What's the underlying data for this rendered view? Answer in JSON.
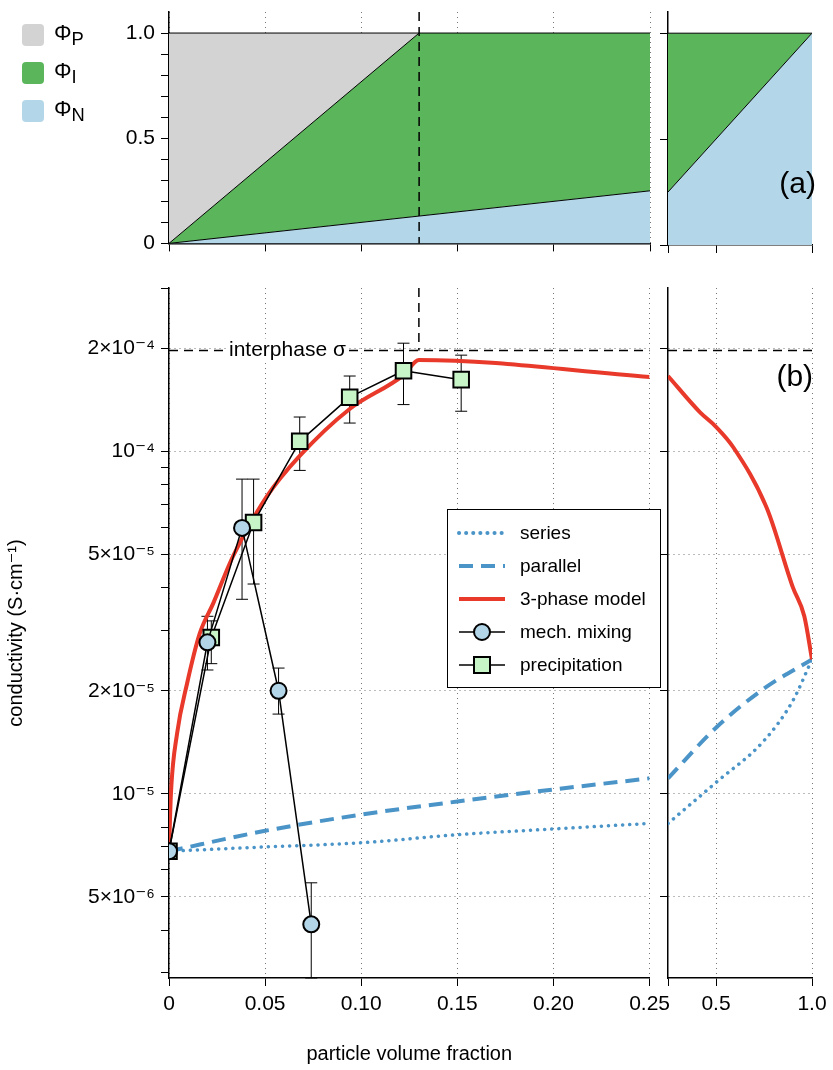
{
  "chart_data": [
    {
      "type": "area",
      "stacked": true,
      "x": [
        0,
        0.13,
        0.25
      ],
      "xlim": [
        0,
        0.25
      ],
      "xticks": [
        0,
        0.05,
        0.1,
        0.15,
        0.2,
        0.25
      ],
      "ylim": [
        0,
        1.1
      ],
      "yticks": [
        0,
        {
          "value": 0.1,
          "label": null
        },
        {
          "value": 0.2,
          "label": null
        },
        {
          "value": 0.3,
          "label": null
        },
        {
          "value": 0.4,
          "label": null
        },
        0.5,
        {
          "value": 0.6,
          "label": null
        },
        {
          "value": 0.7,
          "label": null
        },
        {
          "value": 0.8,
          "label": null
        },
        {
          "value": 0.9,
          "label": null
        },
        {
          "value": 1,
          "label": "1.0"
        }
      ],
      "tick_labels": "y",
      "grid": "x",
      "legend": "left",
      "ref_lines": [
        {
          "axis": "x",
          "value": 0.13,
          "line_style": "dashed"
        }
      ],
      "series": [
        {
          "name": "Φ$_{N}$",
          "color": "#b3d7e8",
          "values": [
            0,
            0.13,
            0.25
          ]
        },
        {
          "name": "Φ$_{I}$",
          "color": "#5bb55a",
          "values": [
            0,
            0.87,
            0.75
          ]
        },
        {
          "name": "Φ$_{P}$",
          "color": "#d3d3d3",
          "x": [
            0,
            0.13
          ],
          "values": [
            1,
            0
          ]
        }
      ]
    },
    {
      "type": "area",
      "stacked": true,
      "x": [
        0.25,
        1
      ],
      "xlim": [
        0.25,
        1
      ],
      "xticks": [
        0.25,
        0.5,
        1
      ],
      "ylim": [
        0,
        1.1
      ],
      "yticks": [
        0,
        0.5,
        1
      ],
      "tick_labels": false,
      "annotations": [
        "(a)"
      ],
      "series": [
        {
          "color": "#b3d7e8",
          "values": [
            0.25,
            1
          ]
        },
        {
          "color": "#5bb55a",
          "values": [
            0.75,
            0
          ]
        }
      ]
    },
    {
      "type": "line",
      "log": "y",
      "xlabel": "particle volume fraction",
      "ylabel": "conductivity (S·cm⁻¹)",
      "xlim": [
        0,
        0.25
      ],
      "xticks": [
        0,
        0.05,
        {
          "value": 0.1,
          "label": "0.10"
        },
        0.15,
        {
          "value": 0.2,
          "label": "0.20"
        },
        0.25
      ],
      "ylim": [
        2.9e-06,
        0.0003
      ],
      "yticks": [
        {
          "value": 3e-06,
          "label": null
        },
        {
          "value": 4e-06,
          "label": null
        },
        {
          "value": 5e-06,
          "label": "5×10⁻⁶"
        },
        {
          "value": 6e-06,
          "label": null
        },
        {
          "value": 7e-06,
          "label": null
        },
        {
          "value": 8e-06,
          "label": null
        },
        {
          "value": 9e-06,
          "label": null
        },
        {
          "value": 1e-05,
          "label": "10⁻⁵"
        },
        {
          "value": 2e-05,
          "label": "2×10⁻⁵"
        },
        {
          "value": 3e-05,
          "label": null
        },
        {
          "value": 4e-05,
          "label": null
        },
        {
          "value": 5e-05,
          "label": "5×10⁻⁵"
        },
        {
          "value": 6e-05,
          "label": null
        },
        {
          "value": 7e-05,
          "label": null
        },
        {
          "value": 8e-05,
          "label": null
        },
        {
          "value": 9e-05,
          "label": null
        },
        {
          "value": 0.0001,
          "label": "10⁻⁴"
        },
        {
          "value": 0.0002,
          "label": "2×10⁻⁴"
        },
        {
          "value": 0.0003,
          "label": null
        }
      ],
      "grid": true,
      "legend": "right",
      "ref_lines": [
        {
          "axis": "y",
          "value": 0.000197,
          "label": "interphase σ",
          "line_style": "dashed"
        },
        {
          "axis": "x",
          "value": 0.13,
          "line_style": "dashed"
        }
      ],
      "series": [
        {
          "name": "series",
          "color": "#4a94c8",
          "line_style": "dotted",
          "x": [
            0,
            0.05,
            0.1,
            0.15,
            0.2,
            0.25
          ],
          "values": [
            6.8e-06,
            7e-06,
            7.2e-06,
            7.6e-06,
            7.9e-06,
            8.2e-06
          ]
        },
        {
          "name": "parallel",
          "color": "#4a94c8",
          "line_style": "dashed",
          "x": [
            0,
            0.05,
            0.1,
            0.15,
            0.2,
            0.25
          ],
          "values": [
            6.8e-06,
            7.8e-06,
            8.7e-06,
            9.5e-06,
            1.03e-05,
            1.11e-05
          ]
        },
        {
          "name": "3-phase model",
          "color": "#e8392a",
          "line_style": "solid",
          "x": [
            0,
            0.001,
            0.0042,
            0.0094,
            0.016,
            0.023,
            0.033,
            0.051,
            0.068,
            0.094,
            0.122,
            0.13,
            0.25
          ],
          "values": [
            6.8e-06,
            1e-05,
            1.5e-05,
            2.1e-05,
            2.94e-05,
            3.6e-05,
            4.9e-05,
            7.4e-05,
            9.7e-05,
            0.000133,
            0.000167,
            0.000185,
            0.000165
          ]
        },
        {
          "name": "mech. mixing",
          "color": "#b3d5e8",
          "marker": "circle",
          "x": [
            0,
            0.02,
            0.038,
            0.057,
            0.074
          ],
          "values": [
            6.8e-06,
            2.77e-05,
            5.98e-05,
            2e-05,
            4.16e-06
          ],
          "errors": [
            null,
            [
              2.3e-05,
              3.3e-05
            ],
            [
              3.7e-05,
              8.3e-05
            ],
            [
              1.71e-05,
              2.33e-05
            ],
            [
              2.9e-06,
              5.5e-06
            ]
          ]
        },
        {
          "name": "precipitation",
          "color": "#c8f5c8",
          "marker": "square",
          "x": [
            0,
            0.022,
            0.044,
            0.068,
            0.094,
            0.122,
            0.152
          ],
          "values": [
            6.8e-06,
            2.86e-05,
            6.2e-05,
            0.000107,
            0.000144,
            0.000172,
            0.000162
          ],
          "errors": [
            null,
            [
              2.4e-05,
              3.2e-05
            ],
            [
              4.1e-05,
              8.3e-05
            ],
            [
              8.8e-05,
              0.000126
            ],
            [
              0.000121,
              0.000166
            ],
            [
              0.000137,
              0.000207
            ],
            [
              0.000131,
              0.000191
            ]
          ]
        }
      ]
    },
    {
      "type": "line",
      "log": "y",
      "xlim": [
        0.25,
        1
      ],
      "xticks": [
        {
          "value": 0.25,
          "label": null
        },
        0.5,
        {
          "value": 1,
          "label": "1.0"
        }
      ],
      "ylim": [
        2.9e-06,
        0.0003
      ],
      "yticks": [
        5e-06,
        1e-05,
        2e-05,
        5e-05,
        0.0001,
        0.0002
      ],
      "tick_labels": "x",
      "grid": true,
      "annotations": [
        "(b)"
      ],
      "ref_lines": [
        {
          "axis": "y",
          "value": 0.000197,
          "line_style": "dashed"
        }
      ],
      "series": [
        {
          "color": "#4a94c8",
          "line_style": "dotted",
          "x": [
            0.25,
            0.5,
            0.75,
            0.9,
            1
          ],
          "values": [
            8.2e-06,
            1.08e-05,
            1.43e-05,
            1.87e-05,
            2.47e-05
          ]
        },
        {
          "color": "#4a94c8",
          "line_style": "dashed",
          "x": [
            0.25,
            0.5,
            0.75,
            1
          ],
          "values": [
            1.11e-05,
            1.56e-05,
            2.03e-05,
            2.47e-05
          ]
        },
        {
          "color": "#e8392a",
          "line_style": "solid",
          "x": [
            0.25,
            0.417,
            0.5,
            0.589,
            0.766,
            0.901,
            0.96,
            1
          ],
          "values": [
            0.000166,
            0.00013,
            0.000118,
            0.000103,
            6.8e-05,
            4e-05,
            3.3e-05,
            2.47e-05
          ]
        }
      ]
    }
  ]
}
